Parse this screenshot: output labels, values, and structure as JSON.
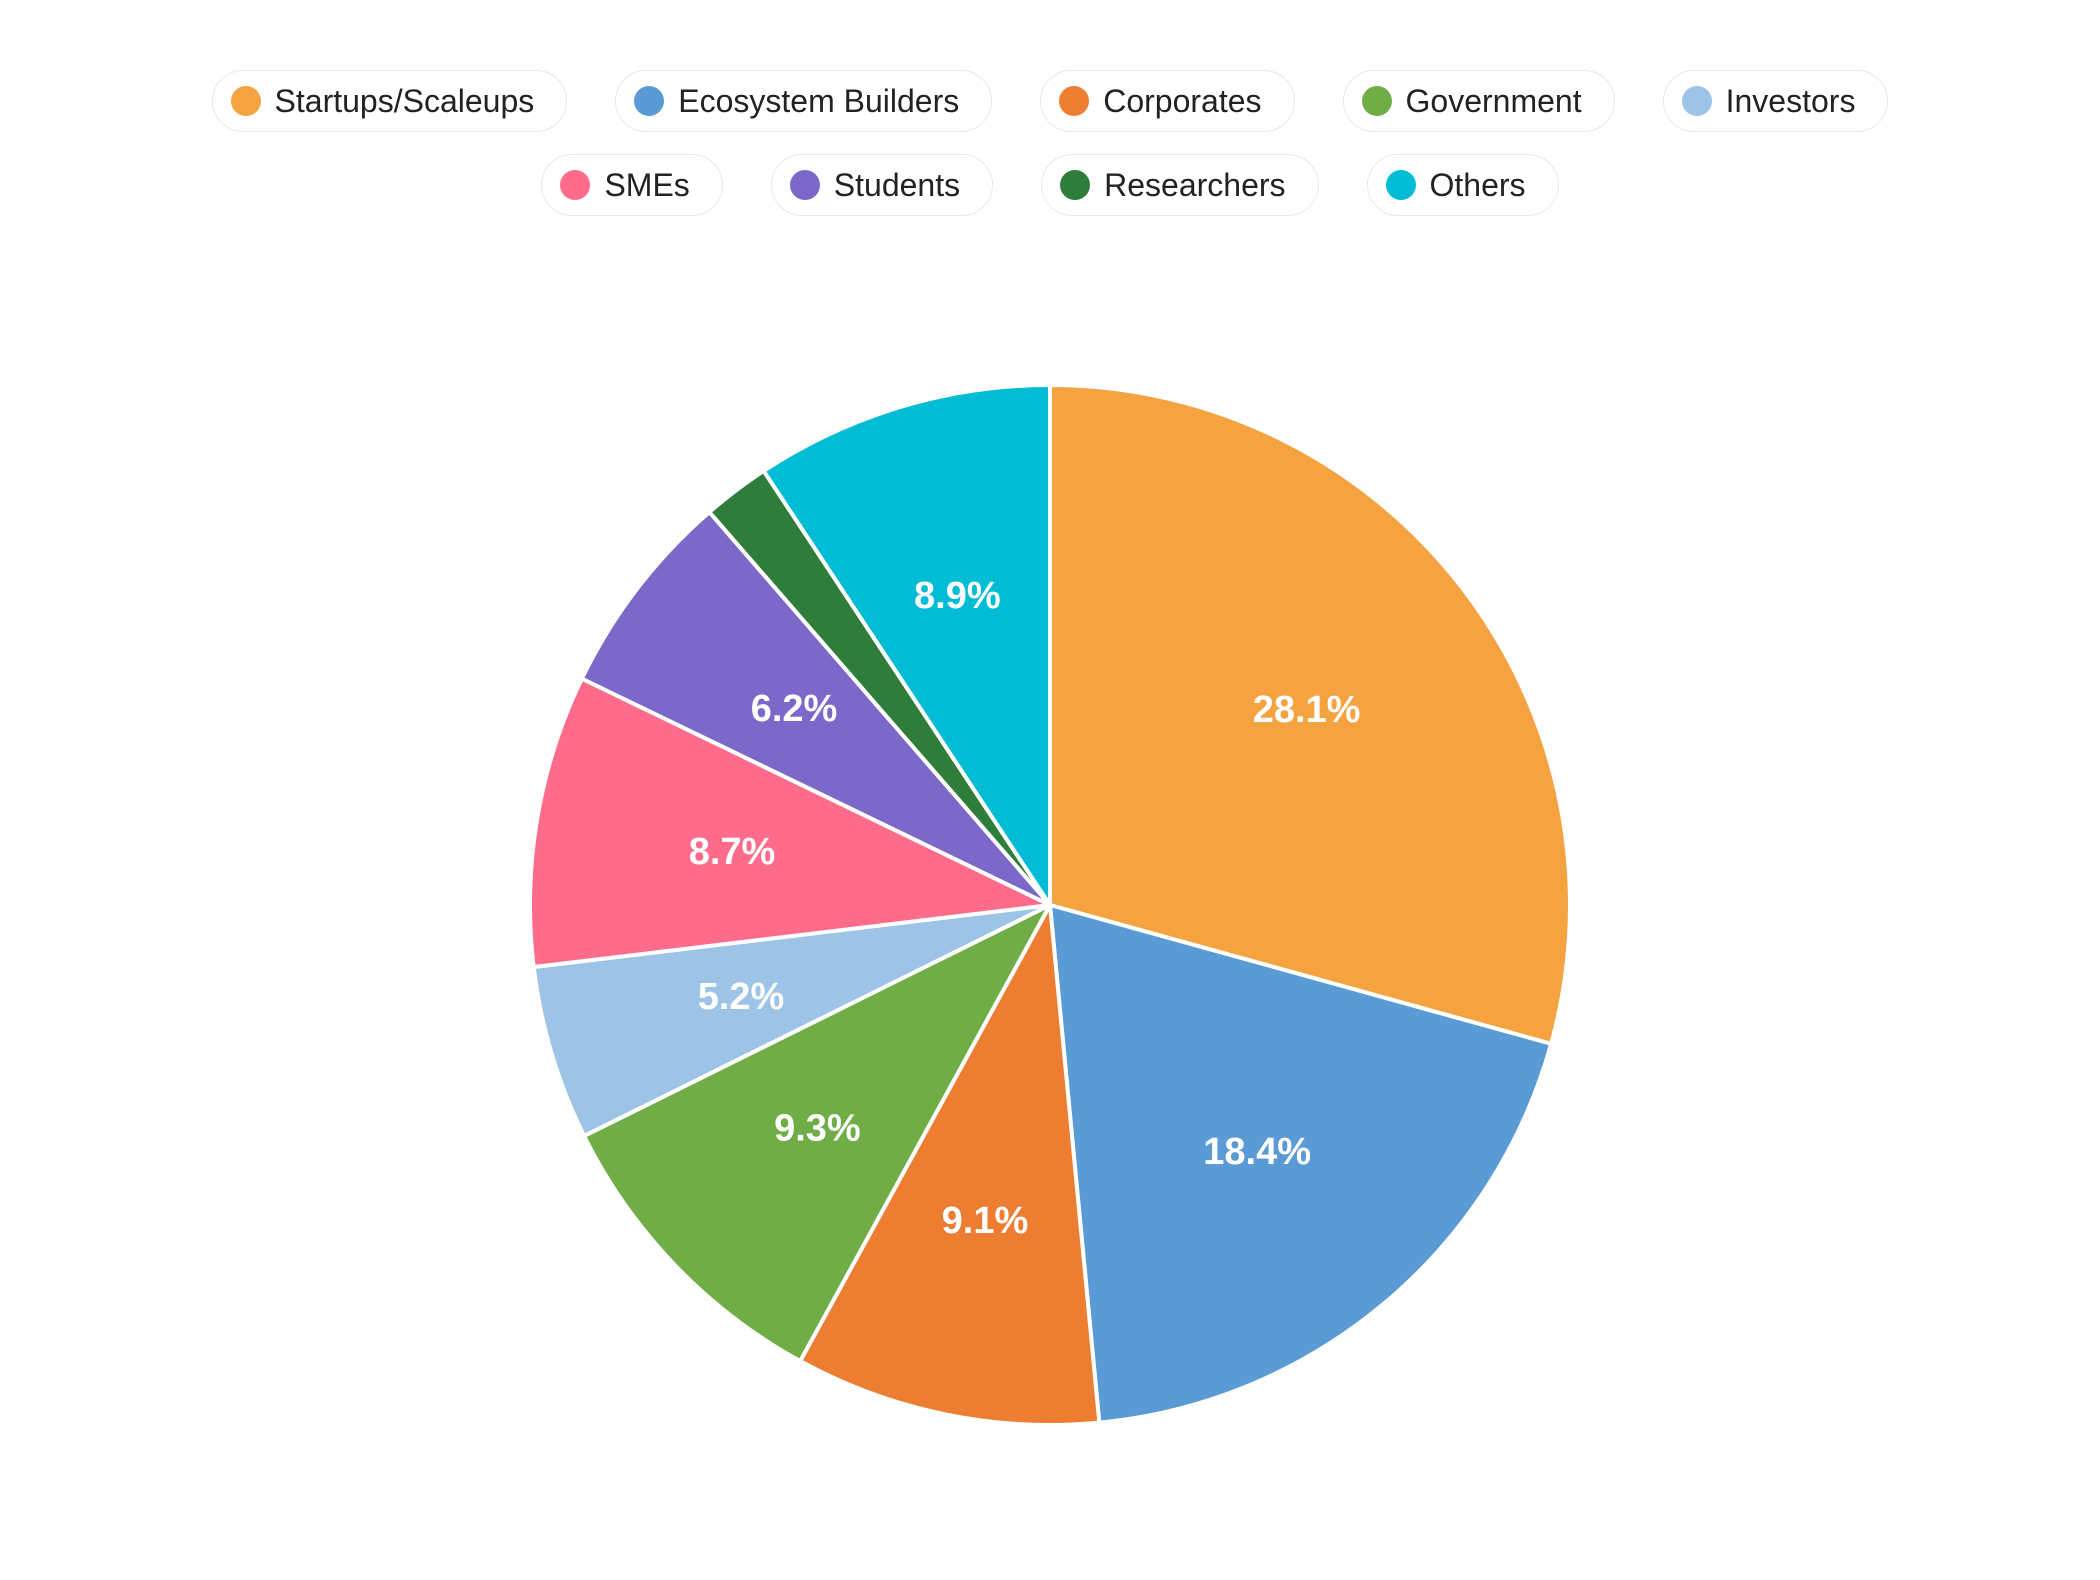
{
  "chart_data": {
    "type": "pie",
    "title": "",
    "legend_position": "top",
    "categories": [
      "Startups/Scaleups",
      "Ecosystem Builders",
      "Corporates",
      "Government",
      "Investors",
      "SMEs",
      "Students",
      "Researchers",
      "Others"
    ],
    "values": [
      28.1,
      18.4,
      9.1,
      9.3,
      5.2,
      8.7,
      6.2,
      2.0,
      8.9
    ],
    "labels": [
      "28.1%",
      "18.4%",
      "9.1%",
      "9.3%",
      "5.2%",
      "8.7%",
      "6.2%",
      "",
      "8.9%"
    ],
    "colors": [
      "#f5a341",
      "#5b9bd5",
      "#ed7d31",
      "#70ad47",
      "#9dc3e6",
      "#ff6b8a",
      "#7b68c8",
      "#2e7d3a",
      "#00bcd4"
    ],
    "start_angle": "12 o'clock",
    "direction": "clockwise"
  }
}
